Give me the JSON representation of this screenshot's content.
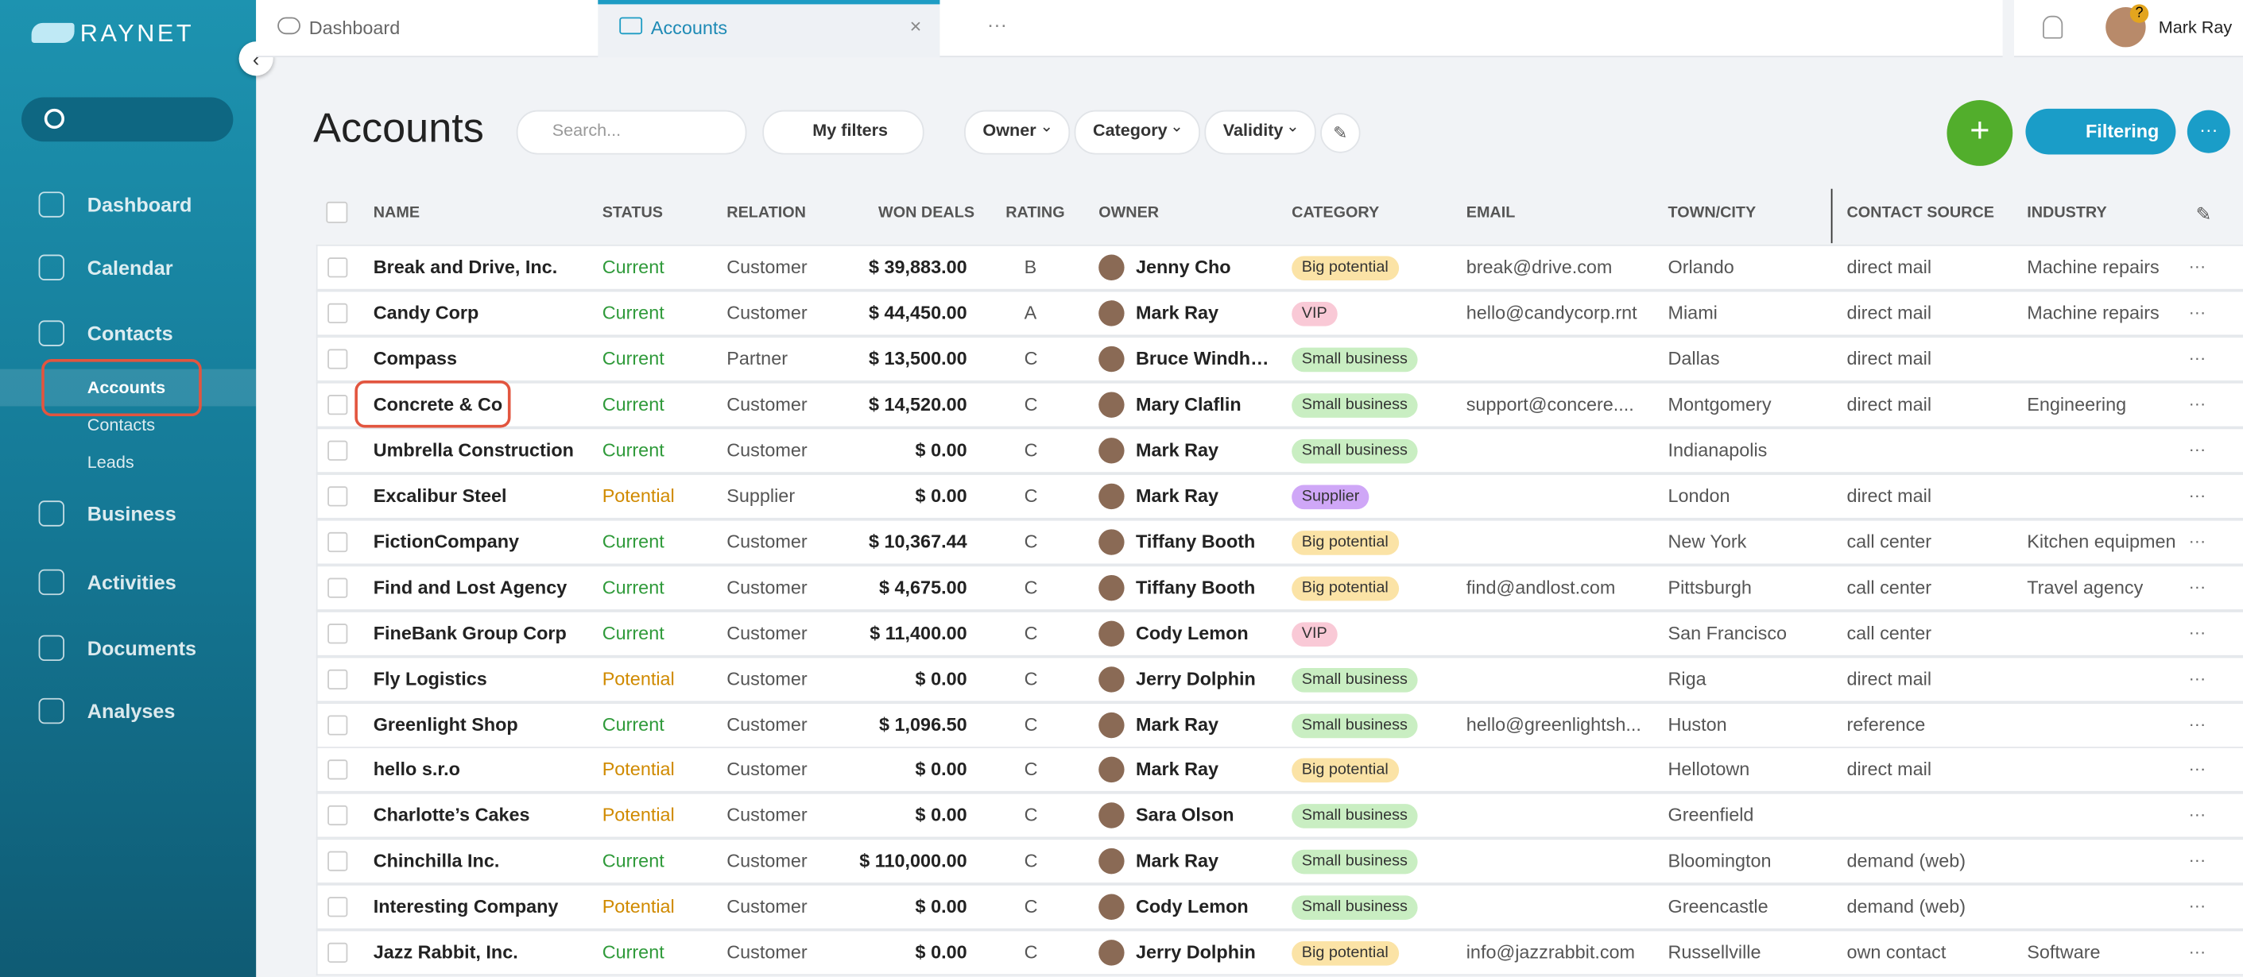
{
  "brand": "RAYNET",
  "nav": {
    "items": [
      {
        "label": "Dashboard"
      },
      {
        "label": "Calendar"
      },
      {
        "label": "Contacts",
        "children": [
          "Accounts",
          "Contacts",
          "Leads"
        ]
      },
      {
        "label": "Business"
      },
      {
        "label": "Activities"
      },
      {
        "label": "Documents"
      },
      {
        "label": "Analyses"
      }
    ]
  },
  "tabs": [
    "Dashboard",
    "Accounts"
  ],
  "user": "Mark Ray",
  "toolbar": {
    "title": "Accounts",
    "search_placeholder": "Search...",
    "my_filters": "My filters",
    "filters": [
      "Owner",
      "Category",
      "Validity"
    ],
    "filtering": "Filtering"
  },
  "table": {
    "columns": {
      "name": "NAME",
      "status": "STATUS",
      "relation": "RELATION",
      "won": "WON DEALS",
      "rating": "RATING",
      "owner": "OWNER",
      "category": "CATEGORY",
      "email": "EMAIL",
      "town": "TOWN/CITY",
      "source": "CONTACT SOURCE",
      "industry": "INDUSTRY"
    },
    "rows": [
      {
        "name": "Break and Drive, Inc.",
        "status": "Current",
        "relation": "Customer",
        "won": "$ 39,883.00",
        "rating": "B",
        "owner": "Jenny Cho",
        "category": "Big potential",
        "email": "break@drive.com",
        "town": "Orlando",
        "source": "direct mail",
        "industry": "Machine repairs"
      },
      {
        "name": "Candy Corp",
        "status": "Current",
        "relation": "Customer",
        "won": "$ 44,450.00",
        "rating": "A",
        "owner": "Mark Ray",
        "category": "VIP",
        "email": "hello@candycorp.rnt",
        "town": "Miami",
        "source": "direct mail",
        "industry": "Machine repairs"
      },
      {
        "name": "Compass",
        "status": "Current",
        "relation": "Partner",
        "won": "$ 13,500.00",
        "rating": "C",
        "owner": "Bruce Windh…",
        "category": "Small business",
        "town": "Dallas",
        "source": "direct mail"
      },
      {
        "name": "Concrete & Co",
        "status": "Current",
        "relation": "Customer",
        "won": "$ 14,520.00",
        "rating": "C",
        "owner": "Mary Claflin",
        "category": "Small business",
        "email": "support@concere....",
        "town": "Montgomery",
        "source": "direct mail",
        "industry": "Engineering"
      },
      {
        "name": "Umbrella Construction",
        "status": "Current",
        "relation": "Customer",
        "won": "$ 0.00",
        "rating": "C",
        "owner": "Mark Ray",
        "category": "Small business",
        "town": "Indianapolis"
      },
      {
        "name": "Excalibur Steel",
        "status": "Potential",
        "relation": "Supplier",
        "won": "$ 0.00",
        "rating": "C",
        "owner": "Mark Ray",
        "category": "Supplier",
        "town": "London",
        "source": "direct mail"
      },
      {
        "name": "FictionCompany",
        "status": "Current",
        "relation": "Customer",
        "won": "$ 10,367.44",
        "rating": "C",
        "owner": "Tiffany Booth",
        "category": "Big potential",
        "town": "New York",
        "source": "call center",
        "industry": "Kitchen equipmen"
      },
      {
        "name": "Find and Lost Agency",
        "status": "Current",
        "relation": "Customer",
        "won": "$ 4,675.00",
        "rating": "C",
        "owner": "Tiffany Booth",
        "category": "Big potential",
        "email": "find@andlost.com",
        "town": "Pittsburgh",
        "source": "call center",
        "industry": "Travel agency"
      },
      {
        "name": "FineBank Group Corp",
        "status": "Current",
        "relation": "Customer",
        "won": "$ 11,400.00",
        "rating": "C",
        "owner": "Cody Lemon",
        "category": "VIP",
        "town": "San Francisco",
        "source": "call center"
      },
      {
        "name": "Fly Logistics",
        "status": "Potential",
        "relation": "Customer",
        "won": "$ 0.00",
        "rating": "C",
        "owner": "Jerry Dolphin",
        "category": "Small business",
        "town": "Riga",
        "source": "direct mail"
      },
      {
        "name": "Greenlight Shop",
        "status": "Current",
        "relation": "Customer",
        "won": "$ 1,096.50",
        "rating": "C",
        "owner": "Mark Ray",
        "category": "Small business",
        "email": "hello@greenlightsh...",
        "town": "Huston",
        "source": "reference"
      },
      {
        "name": "hello s.r.o",
        "status": "Potential",
        "relation": "Customer",
        "won": "$ 0.00",
        "rating": "C",
        "owner": "Mark Ray",
        "category": "Big potential",
        "town": "Hellotown",
        "source": "direct mail"
      },
      {
        "name": "Charlotte’s Cakes",
        "status": "Potential",
        "relation": "Customer",
        "won": "$ 0.00",
        "rating": "C",
        "owner": "Sara Olson",
        "category": "Small business",
        "town": "Greenfield"
      },
      {
        "name": "Chinchilla Inc.",
        "status": "Current",
        "relation": "Customer",
        "won": "$ 110,000.00",
        "rating": "C",
        "owner": "Mark Ray",
        "category": "Small business",
        "town": "Bloomington",
        "source": "demand (web)"
      },
      {
        "name": "Interesting Company",
        "status": "Potential",
        "relation": "Customer",
        "won": "$ 0.00",
        "rating": "C",
        "owner": "Cody Lemon",
        "category": "Small business",
        "town": "Greencastle",
        "source": "demand (web)"
      },
      {
        "name": "Jazz Rabbit, Inc.",
        "status": "Current",
        "relation": "Customer",
        "won": "$ 0.00",
        "rating": "C",
        "owner": "Jerry Dolphin",
        "category": "Big potential",
        "email": "info@jazzrabbit.com",
        "town": "Russellville",
        "source": "own contact",
        "industry": "Software"
      }
    ]
  },
  "styles": {
    "status": {
      "Current": "#2f9a3a",
      "Potential": "#d08a00"
    },
    "category": {
      "Big potential": "#fbe3a6",
      "VIP": "#f9c9d6",
      "Small business": "#c9eec2",
      "Supplier": "#cfa7f7"
    }
  }
}
